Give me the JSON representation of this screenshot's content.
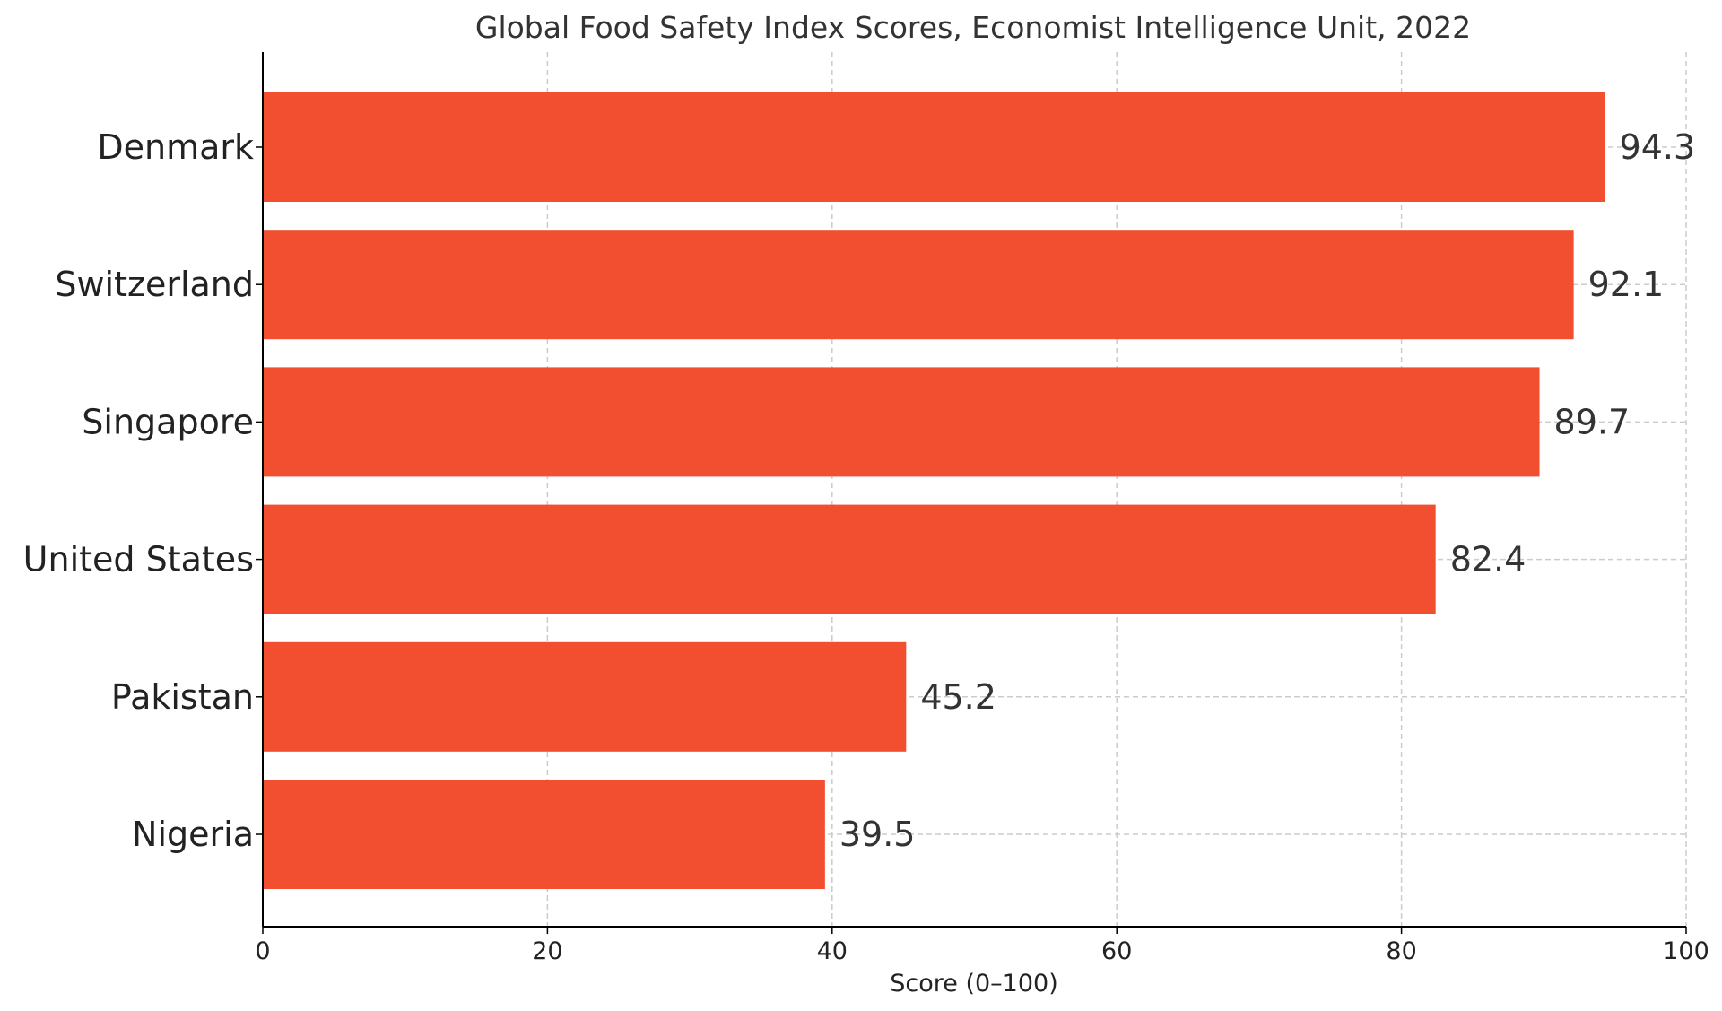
{
  "chart_data": {
    "type": "bar",
    "orientation": "horizontal",
    "title": "Global Food Safety Index Scores, Economist Intelligence Unit, 2022",
    "xlabel": "Score (0–100)",
    "ylabel": "",
    "categories": [
      "Denmark",
      "Switzerland",
      "Singapore",
      "United States",
      "Pakistan",
      "Nigeria"
    ],
    "values": [
      94.3,
      92.1,
      89.7,
      82.4,
      45.2,
      39.5
    ],
    "value_labels": [
      "94.3",
      "92.1",
      "89.7",
      "82.4",
      "45.2",
      "39.5"
    ],
    "xlim": [
      0,
      100
    ],
    "xticks": [
      0,
      20,
      40,
      60,
      80,
      100
    ],
    "xtick_labels": [
      "0",
      "20",
      "40",
      "60",
      "80",
      "100"
    ],
    "grid": true,
    "bar_color": "#f24e30"
  }
}
